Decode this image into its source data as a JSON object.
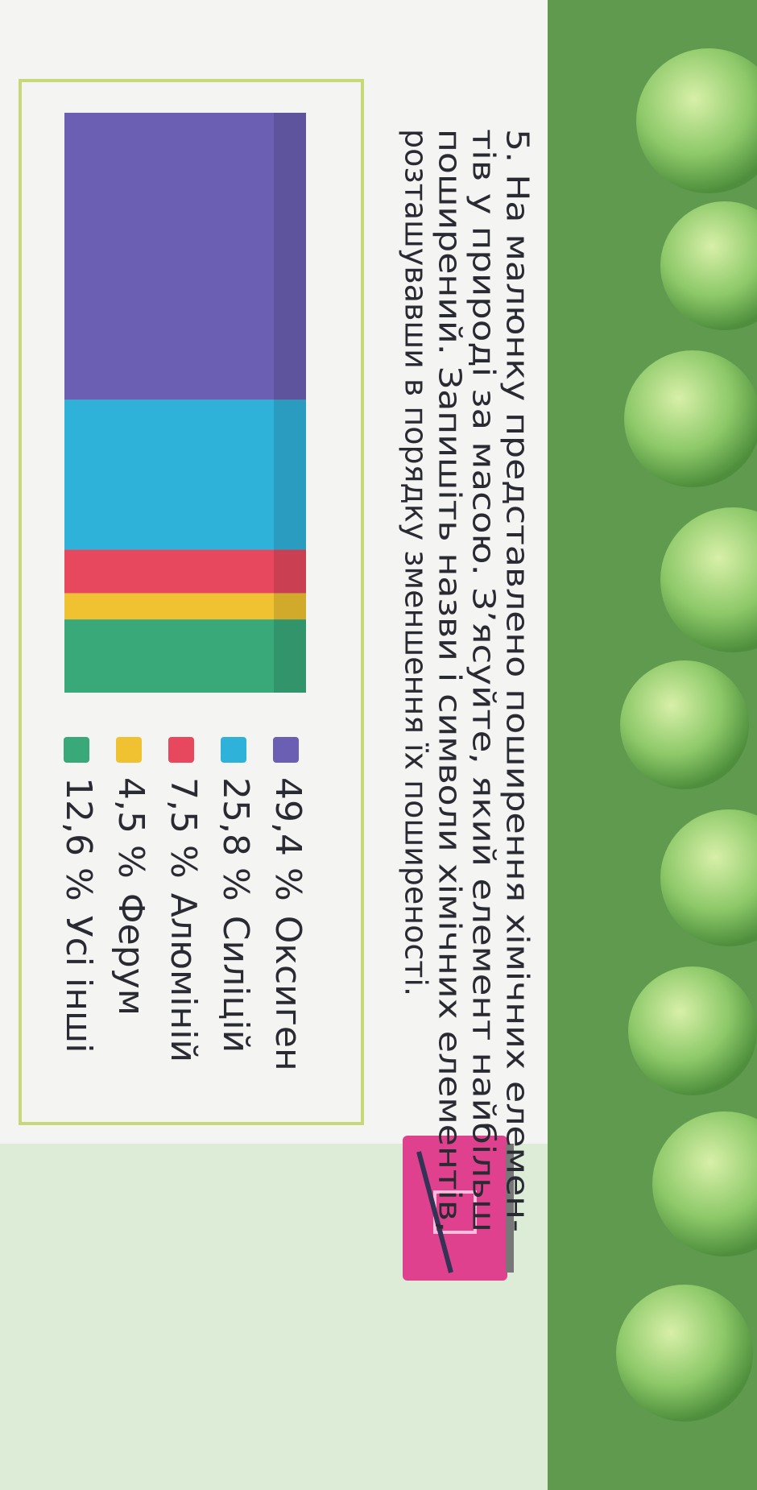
{
  "chart_data": {
    "type": "stacked-bar",
    "title": [
      "5. На малюнку представлено поширення хімічних елемен-",
      "тів у природі за масою. З’ясуйте, який елемент найбільш",
      "поширений. Запишіть назви і символи хімічних елементів,",
      "розташувавши в порядку зменшення їх поширеності."
    ],
    "series": [
      {
        "name": "Оксиген",
        "color": "#6b5fb3",
        "values": [
          49.4
        ],
        "value_labels": [
          "49,4 %"
        ]
      },
      {
        "name": "Силіцій",
        "color": "#2fb2da",
        "values": [
          25.8
        ],
        "value_labels": [
          "25,8 %"
        ]
      },
      {
        "name": "Алюміній",
        "color": "#e8485e",
        "values": [
          7.5
        ],
        "value_labels": [
          "7,5 %"
        ]
      },
      {
        "name": "Ферум",
        "color": "#f0c232",
        "values": [
          4.5
        ],
        "value_labels": [
          "4,5 %"
        ]
      },
      {
        "name": "Усі інші",
        "color": "#3aa97a",
        "values": [
          12.6
        ],
        "value_labels": [
          "12,6 %"
        ]
      }
    ]
  }
}
